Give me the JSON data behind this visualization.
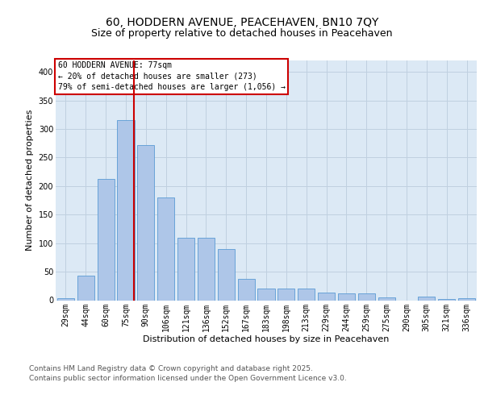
{
  "title_line1": "60, HODDERN AVENUE, PEACEHAVEN, BN10 7QY",
  "title_line2": "Size of property relative to detached houses in Peacehaven",
  "xlabel": "Distribution of detached houses by size in Peacehaven",
  "ylabel": "Number of detached properties",
  "categories": [
    "29sqm",
    "44sqm",
    "60sqm",
    "75sqm",
    "90sqm",
    "106sqm",
    "121sqm",
    "136sqm",
    "152sqm",
    "167sqm",
    "183sqm",
    "198sqm",
    "213sqm",
    "229sqm",
    "244sqm",
    "259sqm",
    "275sqm",
    "290sqm",
    "305sqm",
    "321sqm",
    "336sqm"
  ],
  "values": [
    4,
    43,
    212,
    315,
    272,
    180,
    110,
    110,
    90,
    38,
    20,
    21,
    21,
    14,
    12,
    12,
    5,
    0,
    6,
    2,
    3
  ],
  "bar_color": "#aec6e8",
  "bar_edge_color": "#5a9bd4",
  "vline_color": "#cc0000",
  "vline_position": 3.42,
  "annotation_text": "60 HODDERN AVENUE: 77sqm\n← 20% of detached houses are smaller (273)\n79% of semi-detached houses are larger (1,056) →",
  "annotation_box_color": "#ffffff",
  "annotation_box_edge": "#cc0000",
  "ylim": [
    0,
    420
  ],
  "yticks": [
    0,
    50,
    100,
    150,
    200,
    250,
    300,
    350,
    400
  ],
  "grid_color": "#c0d0e0",
  "background_color": "#dce9f5",
  "footer_line1": "Contains HM Land Registry data © Crown copyright and database right 2025.",
  "footer_line2": "Contains public sector information licensed under the Open Government Licence v3.0.",
  "title_fontsize": 10,
  "subtitle_fontsize": 9,
  "axis_label_fontsize": 8,
  "tick_fontsize": 7,
  "annotation_fontsize": 7,
  "footer_fontsize": 6.5
}
